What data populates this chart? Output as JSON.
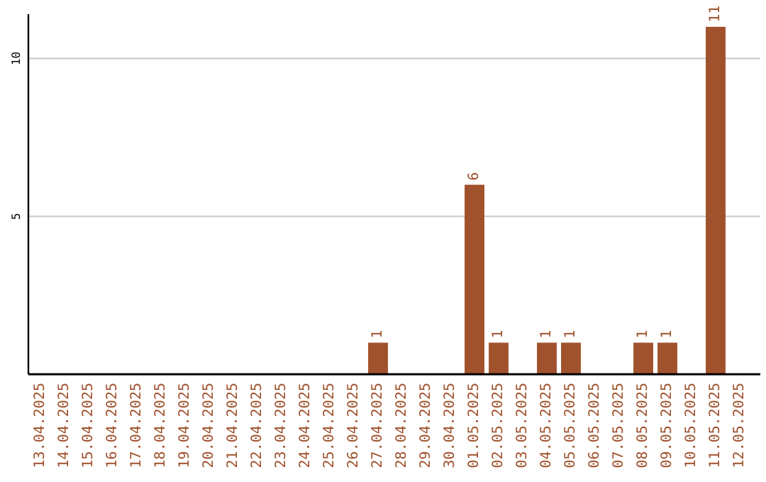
{
  "chart_data": {
    "type": "bar",
    "categories": [
      "13.04.2025",
      "14.04.2025",
      "15.04.2025",
      "16.04.2025",
      "17.04.2025",
      "18.04.2025",
      "19.04.2025",
      "20.04.2025",
      "21.04.2025",
      "22.04.2025",
      "23.04.2025",
      "24.04.2025",
      "25.04.2025",
      "26.04.2025",
      "27.04.2025",
      "28.04.2025",
      "29.04.2025",
      "30.04.2025",
      "01.05.2025",
      "02.05.2025",
      "03.05.2025",
      "04.05.2025",
      "05.05.2025",
      "06.05.2025",
      "07.05.2025",
      "08.05.2025",
      "09.05.2025",
      "10.05.2025",
      "11.05.2025",
      "12.05.2025"
    ],
    "values": [
      0,
      0,
      0,
      0,
      0,
      0,
      0,
      0,
      0,
      0,
      0,
      0,
      0,
      0,
      1,
      0,
      0,
      0,
      6,
      1,
      0,
      1,
      1,
      0,
      0,
      1,
      1,
      0,
      11,
      0
    ],
    "value_labels": [
      null,
      null,
      null,
      null,
      null,
      null,
      null,
      null,
      null,
      null,
      null,
      null,
      null,
      null,
      "1",
      null,
      null,
      null,
      "6",
      "1",
      null,
      "1",
      "1",
      null,
      null,
      "1",
      "1",
      null,
      "11",
      null
    ],
    "color": "#a0522d",
    "ylim": [
      0,
      11.4
    ],
    "yticks": [
      5,
      10
    ],
    "grid": "y"
  }
}
